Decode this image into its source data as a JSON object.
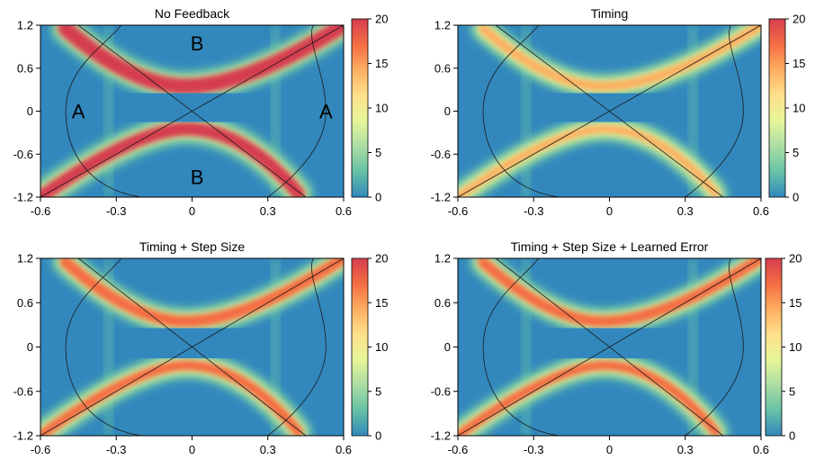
{
  "chart_data": [
    {
      "type": "heatmap",
      "title": "No Feedback",
      "xlabel": "",
      "ylabel": "",
      "xlim": [
        -0.6,
        0.6
      ],
      "ylim": [
        -1.2,
        1.2
      ],
      "x_ticks": [
        "-0.6",
        "-0.3",
        "0",
        "0.3",
        "0.6"
      ],
      "y_ticks": [
        "1.2",
        "0.6",
        "0",
        "-0.6",
        "-1.2"
      ],
      "colorbar": {
        "range": [
          0,
          20
        ],
        "ticks": [
          "20",
          "15",
          "10",
          "5",
          "0"
        ]
      },
      "colormap": [
        "#3288bd",
        "#66c2a5",
        "#abdda4",
        "#e6f598",
        "#fee08b",
        "#fdae61",
        "#f46d43",
        "#d53e4f"
      ],
      "band_intensity": 1.0,
      "annotations": [
        {
          "text": "B",
          "x": 0.02,
          "y": 0.95
        },
        {
          "text": "B",
          "x": 0.02,
          "y": -0.92
        },
        {
          "text": "A",
          "x": -0.45,
          "y": 0.0
        },
        {
          "text": "A",
          "x": 0.53,
          "y": 0.0
        }
      ]
    },
    {
      "type": "heatmap",
      "title": "Timing",
      "xlabel": "",
      "ylabel": "",
      "xlim": [
        -0.6,
        0.6
      ],
      "ylim": [
        -1.2,
        1.2
      ],
      "x_ticks": [
        "-0.6",
        "-0.3",
        "0",
        "0.3",
        "0.6"
      ],
      "y_ticks": [
        "1.2",
        "0.6",
        "0",
        "-0.6",
        "-1.2"
      ],
      "colorbar": {
        "range": [
          0,
          20
        ],
        "ticks": [
          "20",
          "15",
          "10",
          "5",
          "0"
        ]
      },
      "colormap": [
        "#3288bd",
        "#66c2a5",
        "#abdda4",
        "#e6f598",
        "#fee08b",
        "#fdae61",
        "#f46d43",
        "#d53e4f"
      ],
      "band_intensity": 0.55,
      "annotations": []
    },
    {
      "type": "heatmap",
      "title": "Timing + Step Size",
      "xlabel": "",
      "ylabel": "",
      "xlim": [
        -0.6,
        0.6
      ],
      "ylim": [
        -1.2,
        1.2
      ],
      "x_ticks": [
        "-0.6",
        "-0.3",
        "0",
        "0.3",
        "0.6"
      ],
      "y_ticks": [
        "1.2",
        "0.6",
        "0",
        "-0.6",
        "-1.2"
      ],
      "colorbar": {
        "range": [
          0,
          20
        ],
        "ticks": [
          "20",
          "15",
          "10",
          "5",
          "0"
        ]
      },
      "colormap": [
        "#3288bd",
        "#66c2a5",
        "#abdda4",
        "#e6f598",
        "#fee08b",
        "#fdae61",
        "#f46d43",
        "#d53e4f"
      ],
      "band_intensity": 0.75,
      "annotations": []
    },
    {
      "type": "heatmap",
      "title": "Timing + Step Size + Learned Error",
      "xlabel": "",
      "ylabel": "",
      "xlim": [
        -0.6,
        0.6
      ],
      "ylim": [
        -1.2,
        1.2
      ],
      "x_ticks": [
        "-0.6",
        "-0.3",
        "0",
        "0.3",
        "0.6"
      ],
      "y_ticks": [
        "1.2",
        "0.6",
        "0",
        "-0.6",
        "-1.2"
      ],
      "colorbar": {
        "range": [
          0,
          20
        ],
        "ticks": [
          "20",
          "15",
          "10",
          "5",
          "0"
        ]
      },
      "colormap": [
        "#3288bd",
        "#66c2a5",
        "#abdda4",
        "#e6f598",
        "#fee08b",
        "#fdae61",
        "#f46d43",
        "#d53e4f"
      ],
      "band_intensity": 0.7,
      "annotations": []
    }
  ]
}
